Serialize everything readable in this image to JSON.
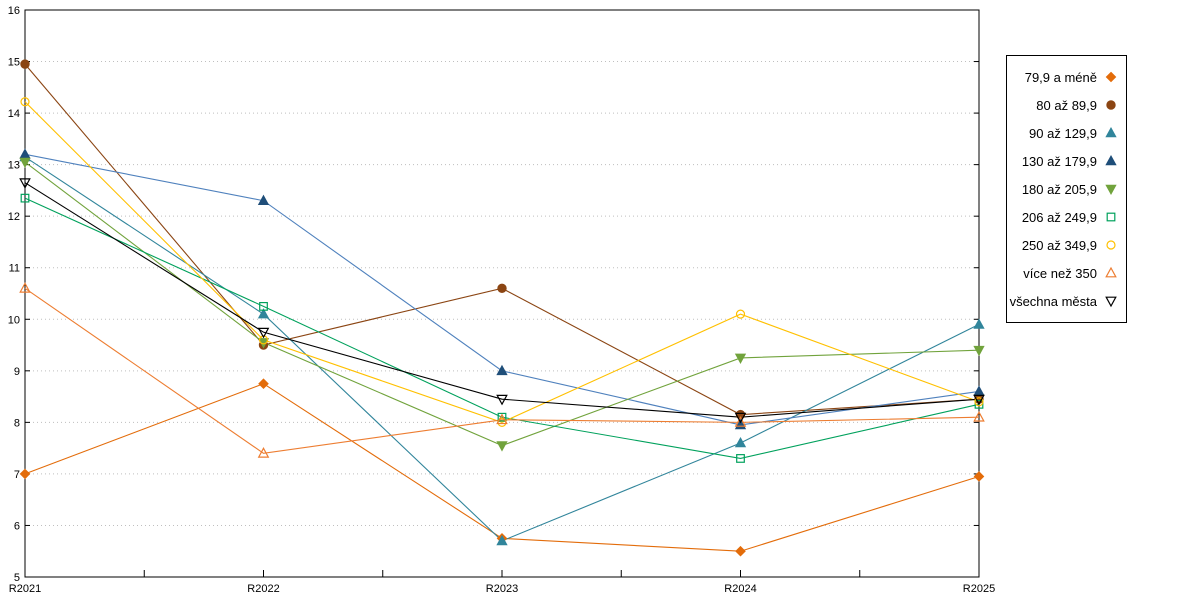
{
  "chart_data": {
    "type": "line",
    "title": "",
    "xlabel": "",
    "ylabel": "",
    "categories": [
      "R2021",
      "R2022",
      "R2023",
      "R2024",
      "R2025"
    ],
    "ylim": [
      5,
      16
    ],
    "yticks": [
      5,
      6,
      7,
      8,
      9,
      10,
      11,
      12,
      13,
      14,
      15,
      16
    ],
    "grid": "horizontal-dotted",
    "legend_position": "outside-right",
    "series": [
      {
        "name": "79,9 a méně",
        "color": "#E36C0A",
        "marker": "diamond-filled",
        "values": [
          7.0,
          8.75,
          5.75,
          5.5,
          6.95
        ]
      },
      {
        "name": "80 až 89,9",
        "color": "#8B4513",
        "marker": "circle-filled",
        "values": [
          14.95,
          9.5,
          10.6,
          8.15,
          8.45
        ]
      },
      {
        "name": "90 až 129,9",
        "color": "#31859B",
        "marker": "triangle-up-filled",
        "values": [
          13.15,
          10.1,
          5.7,
          7.6,
          9.9
        ]
      },
      {
        "name": "130 až 179,9",
        "color": "#4F81BD",
        "marker": "triangle-up-filled",
        "marker_color": "#1F4E79",
        "values": [
          13.2,
          12.3,
          9.0,
          7.95,
          8.6
        ]
      },
      {
        "name": "180 až 205,9",
        "color": "#71A33C",
        "marker": "triangle-down-filled",
        "values": [
          13.05,
          9.55,
          7.55,
          9.25,
          9.4
        ]
      },
      {
        "name": "206 až 249,9",
        "color": "#00A15C",
        "marker": "square-open",
        "values": [
          12.35,
          10.25,
          8.1,
          7.3,
          8.35
        ]
      },
      {
        "name": "250 až 349,9",
        "color": "#FFC000",
        "marker": "circle-open",
        "values": [
          14.22,
          9.6,
          8.0,
          10.1,
          8.4
        ]
      },
      {
        "name": "více než 350",
        "color": "#ED7D31",
        "marker": "triangle-up-open",
        "values": [
          10.6,
          7.4,
          8.05,
          8.0,
          8.1
        ]
      },
      {
        "name": "všechna města",
        "color": "#000000",
        "marker": "triangle-down-open",
        "values": [
          12.65,
          9.75,
          8.45,
          8.1,
          8.45
        ]
      }
    ]
  }
}
